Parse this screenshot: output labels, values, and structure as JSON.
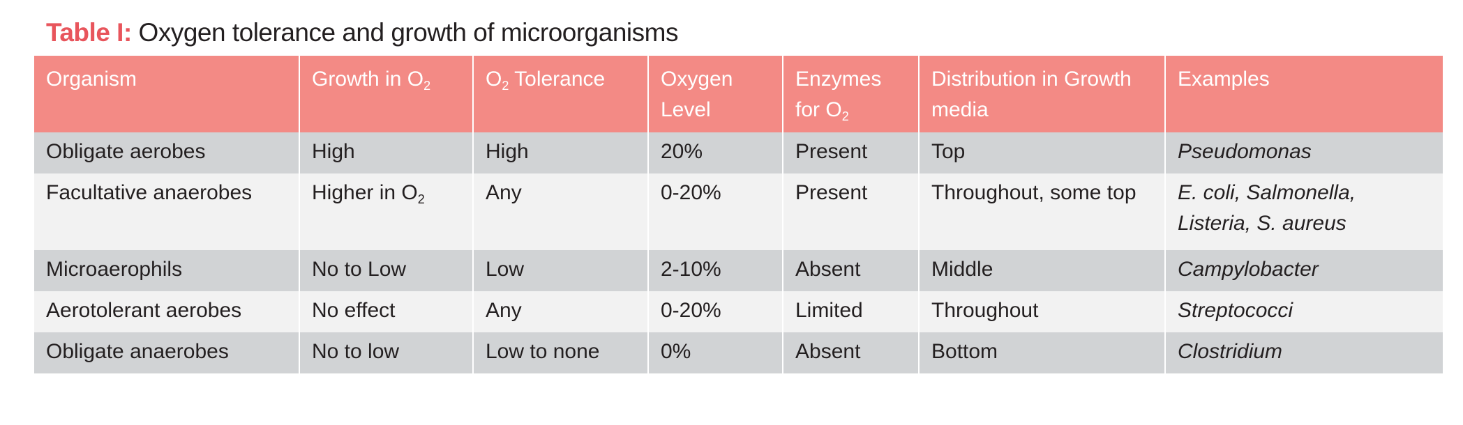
{
  "title": {
    "label": "Table I:",
    "text": " Oxygen tolerance and growth of microorganisms"
  },
  "colors": {
    "header_bg": "#f38a85",
    "title_label": "#e8555c",
    "row_dark": "#d1d3d5",
    "row_light": "#f2f2f2"
  },
  "headers": [
    {
      "text": "Organism",
      "sub": ""
    },
    {
      "text": "Growth in O",
      "sub": "2"
    },
    {
      "pre": "O",
      "sub": "2",
      "text": " Tolerance"
    },
    {
      "text": "Oxygen Level"
    },
    {
      "text": "Enzymes for O",
      "sub": "2"
    },
    {
      "text": "Distribution in Growth media"
    },
    {
      "text": "Examples"
    }
  ],
  "rows": [
    {
      "organism": "Obligate aerobes",
      "growth": "High",
      "growth_sub": "",
      "tolerance": "High",
      "level": "20%",
      "enzymes": "Present",
      "distribution": "Top",
      "examples": "Pseudomonas"
    },
    {
      "organism": "Facultative anaerobes",
      "growth": "Higher in O",
      "growth_sub": "2",
      "tolerance": "Any",
      "level": "0-20%",
      "enzymes": "Present",
      "distribution": "Throughout, some top",
      "examples": "E. coli, Salmonella, Listeria, S. aureus"
    },
    {
      "organism": "Microaerophils",
      "growth": "No to Low",
      "growth_sub": "",
      "tolerance": "Low",
      "level": "2-10%",
      "enzymes": "Absent",
      "distribution": "Middle",
      "examples": "Campylobacter"
    },
    {
      "organism": "Aerotolerant aerobes",
      "growth": "No effect",
      "growth_sub": "",
      "tolerance": "Any",
      "level": "0-20%",
      "enzymes": "Limited",
      "distribution": "Throughout",
      "examples": "Streptococci"
    },
    {
      "organism": "Obligate anaerobes",
      "growth": "No to low",
      "growth_sub": "",
      "tolerance": "Low to none",
      "level": "0%",
      "enzymes": "Absent",
      "distribution": "Bottom",
      "examples": "Clostridium"
    }
  ]
}
